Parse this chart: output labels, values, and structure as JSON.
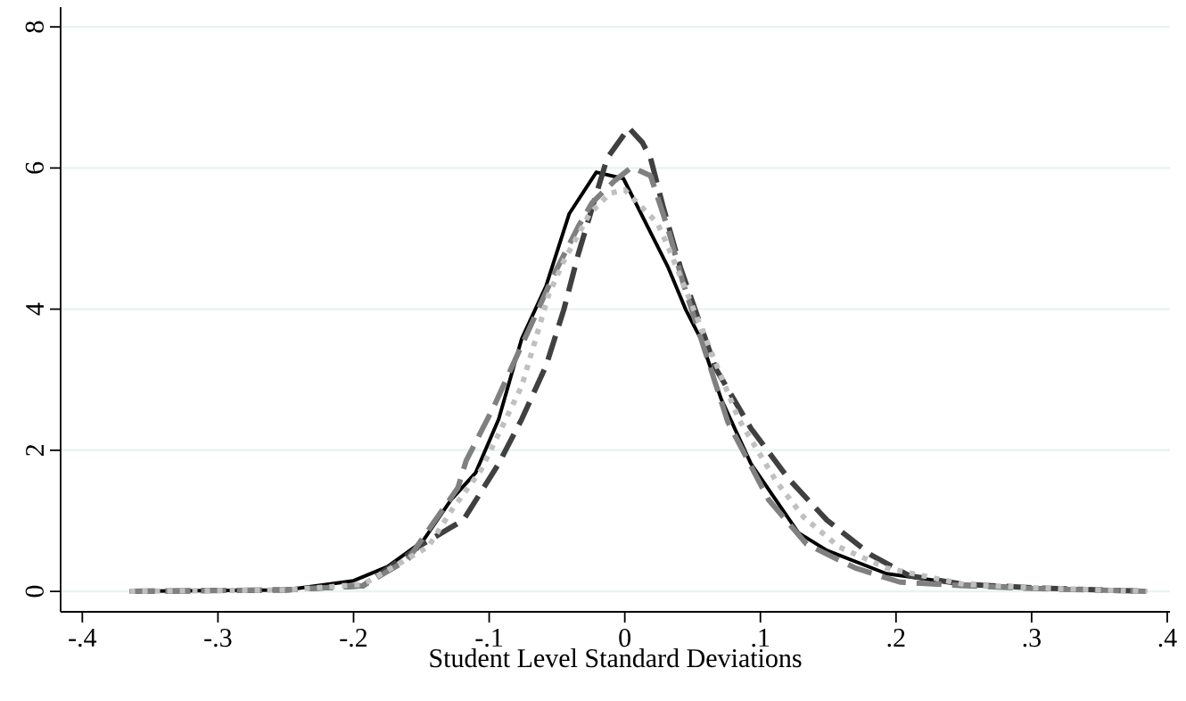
{
  "chart_data": {
    "type": "line",
    "xlabel": "Student Level Standard Deviations",
    "xlim": [
      -0.416,
      0.402
    ],
    "ylim": [
      -0.29,
      8.28
    ],
    "xticks": [
      {
        "value": -0.4,
        "label": "-.4"
      },
      {
        "value": -0.3,
        "label": "-.3"
      },
      {
        "value": -0.2,
        "label": "-.2"
      },
      {
        "value": -0.1,
        "label": "-.1"
      },
      0,
      {
        "value": 0.1,
        "label": ".1"
      },
      {
        "value": 0.2,
        "label": ".2"
      },
      {
        "value": 0.3,
        "label": ".3"
      },
      {
        "value": 0.4,
        "label": ".4"
      }
    ],
    "yticks": [
      0,
      2,
      4,
      6,
      8
    ],
    "grid": "y",
    "series": [
      {
        "color": "#000000",
        "line_style": "solid",
        "x": [
          -0.365,
          -0.25,
          -0.2,
          -0.175,
          -0.149,
          -0.128,
          -0.11,
          -0.093,
          -0.076,
          -0.058,
          -0.041,
          -0.021,
          -0.001,
          0.032,
          0.045,
          0.056,
          0.071,
          0.093,
          0.128,
          0.149,
          0.193,
          0.25,
          0.3,
          0.385
        ],
        "values": [
          0,
          0.02,
          0.15,
          0.35,
          0.71,
          1.3,
          1.68,
          2.44,
          3.58,
          4.33,
          5.35,
          5.94,
          5.85,
          4.59,
          3.99,
          3.58,
          2.73,
          1.81,
          0.83,
          0.58,
          0.25,
          0.1,
          0.05,
          0
        ]
      },
      {
        "color": "#404040",
        "line_style": "dashed",
        "x": [
          -0.365,
          -0.25,
          -0.193,
          -0.149,
          -0.119,
          -0.093,
          -0.076,
          -0.058,
          -0.045,
          -0.034,
          -0.013,
          0.003,
          0.013,
          0.019,
          0.028,
          0.041,
          0.067,
          0.093,
          0.121,
          0.149,
          0.182,
          0.21,
          0.25,
          0.3,
          0.385
        ],
        "values": [
          0,
          0.02,
          0.08,
          0.67,
          1.01,
          1.81,
          2.44,
          3.2,
          3.99,
          4.8,
          6.14,
          6.57,
          6.36,
          6.14,
          5.47,
          4.59,
          3.16,
          2.31,
          1.59,
          1.01,
          0.51,
          0.22,
          0.1,
          0.05,
          0
        ]
      },
      {
        "color": "#808080",
        "line_style": "dashed",
        "x": [
          -0.365,
          -0.25,
          -0.193,
          -0.16,
          -0.123,
          -0.117,
          -0.097,
          -0.052,
          -0.034,
          -0.024,
          -0.008,
          0.005,
          0.019,
          0.032,
          0.043,
          0.076,
          0.106,
          0.134,
          0.17,
          0.203,
          0.25,
          0.3,
          0.385
        ],
        "values": [
          0,
          0.02,
          0.08,
          0.45,
          1.47,
          1.85,
          2.6,
          4.5,
          5.18,
          5.51,
          5.81,
          6.01,
          5.89,
          5.13,
          4.37,
          2.4,
          1.3,
          0.67,
          0.33,
          0.13,
          0.08,
          0.04,
          0
        ]
      },
      {
        "color": "#c0c0c0",
        "line_style": "dotted",
        "x": [
          -0.365,
          -0.25,
          -0.193,
          -0.145,
          -0.128,
          -0.106,
          -0.091,
          -0.076,
          -0.056,
          -0.045,
          -0.026,
          -0.011,
          0,
          0.024,
          0.032,
          0.084,
          0.112,
          0.132,
          0.158,
          0.193,
          0.25,
          0.3,
          0.385
        ],
        "values": [
          0,
          0.02,
          0.1,
          0.63,
          1.14,
          1.72,
          2.31,
          2.91,
          4.21,
          4.68,
          5.35,
          5.64,
          5.69,
          5.22,
          4.88,
          2.44,
          1.55,
          1.05,
          0.63,
          0.33,
          0.1,
          0.05,
          0
        ]
      }
    ]
  }
}
